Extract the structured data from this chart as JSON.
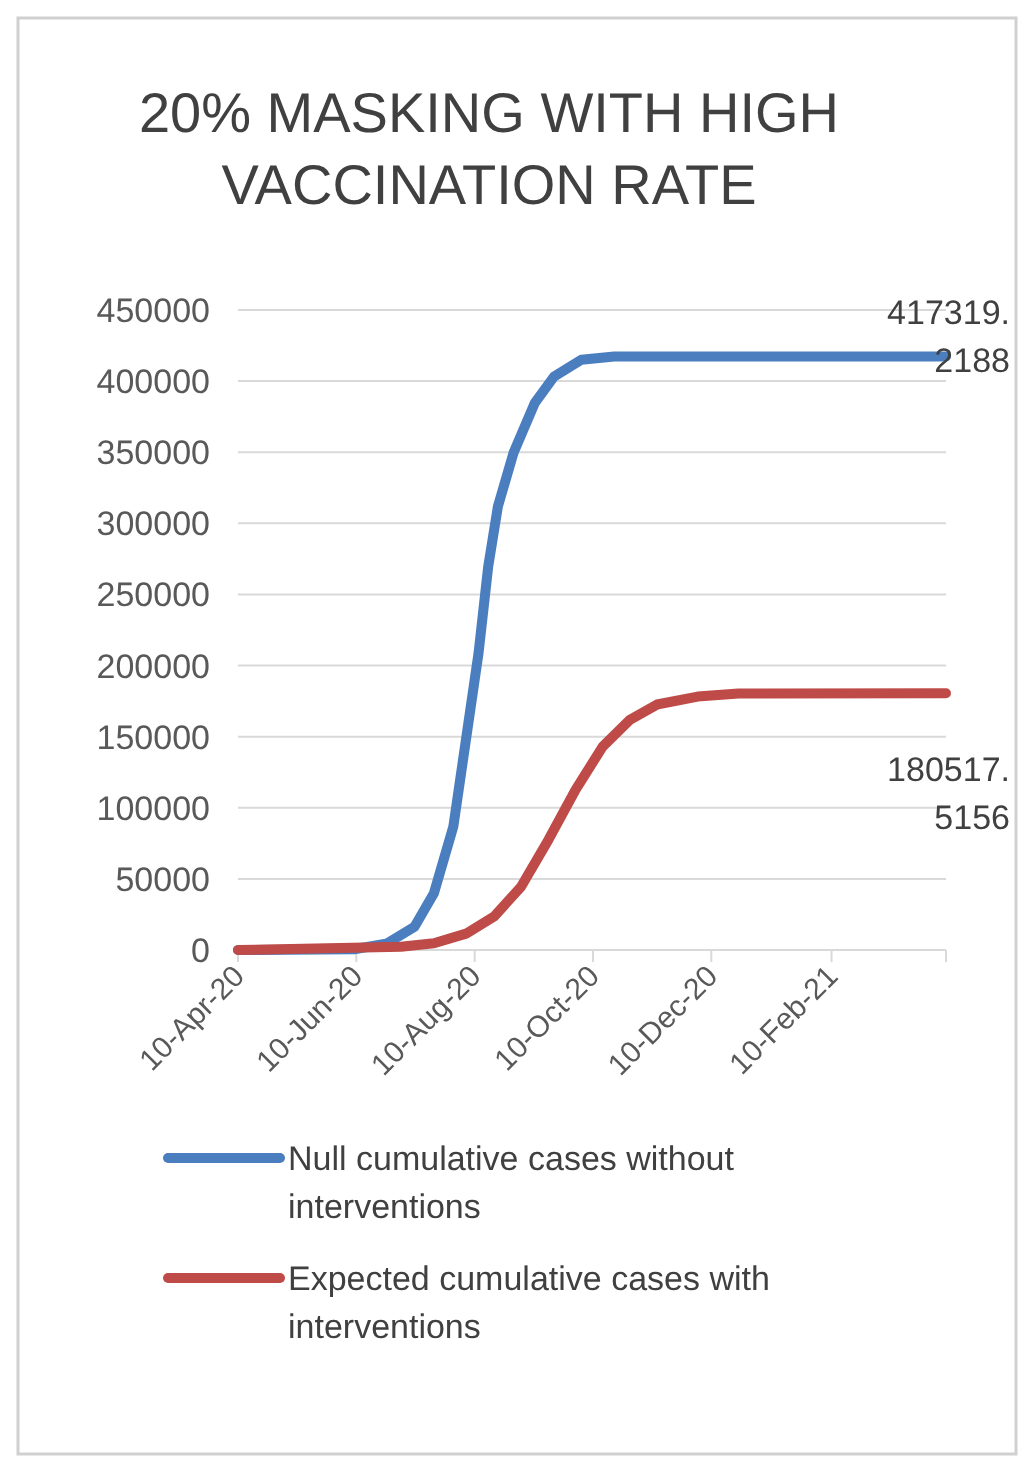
{
  "chart_data": {
    "type": "line",
    "title": "20% MASKING WITH HIGH VACCINATION RATE",
    "xlim": [
      "2020-04-10",
      "2021-04-10"
    ],
    "xticks": [
      {
        "value": "2020-04-10",
        "label": "10-Apr-20"
      },
      {
        "value": "2020-06-10",
        "label": "10-Jun-20"
      },
      {
        "value": "2020-08-10",
        "label": "10-Aug-20"
      },
      {
        "value": "2020-10-10",
        "label": "10-Oct-20"
      },
      {
        "value": "2020-12-10",
        "label": "10-Dec-20"
      },
      {
        "value": "2021-02-10",
        "label": "10-Feb-21"
      },
      {
        "value": "2021-04-10",
        "label": null
      }
    ],
    "ylim": [
      0,
      450000
    ],
    "yticks": [
      0,
      50000,
      100000,
      150000,
      200000,
      250000,
      300000,
      350000,
      400000,
      450000
    ],
    "grid": "y",
    "legend": "bottom",
    "marker": "none",
    "line_style": "solid",
    "series": [
      {
        "name": "Null cumulative cases without interventions",
        "color": "#4a7ebf",
        "x": [
          "2020-04-10",
          "2020-06-09",
          "2020-06-26",
          "2020-07-10",
          "2020-07-20",
          "2020-07-30",
          "2020-08-06",
          "2020-08-12",
          "2020-08-17",
          "2020-08-22",
          "2020-08-30",
          "2020-09-10",
          "2020-09-20",
          "2020-10-04",
          "2020-10-21",
          "2021-04-10"
        ],
        "values": [
          0,
          500,
          4700,
          16400,
          39900,
          86700,
          152400,
          208700,
          269700,
          311900,
          349400,
          384600,
          403300,
          415000,
          417300,
          417319.2188
        ],
        "value_labels": [
          null,
          null,
          null,
          null,
          null,
          null,
          null,
          null,
          null,
          null,
          null,
          null,
          null,
          null,
          null,
          "417319.2188"
        ]
      },
      {
        "name": "Expected cumulative cases with interventions",
        "color": "#be4b48",
        "x": [
          "2020-04-10",
          "2020-07-03",
          "2020-07-20",
          "2020-08-06",
          "2020-08-20",
          "2020-09-03",
          "2020-09-17",
          "2020-10-01",
          "2020-10-15",
          "2020-10-29",
          "2020-11-12",
          "2020-12-03",
          "2020-12-24",
          "2021-04-10"
        ],
        "values": [
          0,
          2300,
          4700,
          11700,
          23500,
          44600,
          77400,
          112600,
          143000,
          161800,
          172600,
          178200,
          180400,
          180517.5156
        ],
        "value_labels": [
          null,
          null,
          null,
          null,
          null,
          null,
          null,
          null,
          null,
          null,
          null,
          null,
          null,
          "180517.5156"
        ]
      }
    ]
  }
}
